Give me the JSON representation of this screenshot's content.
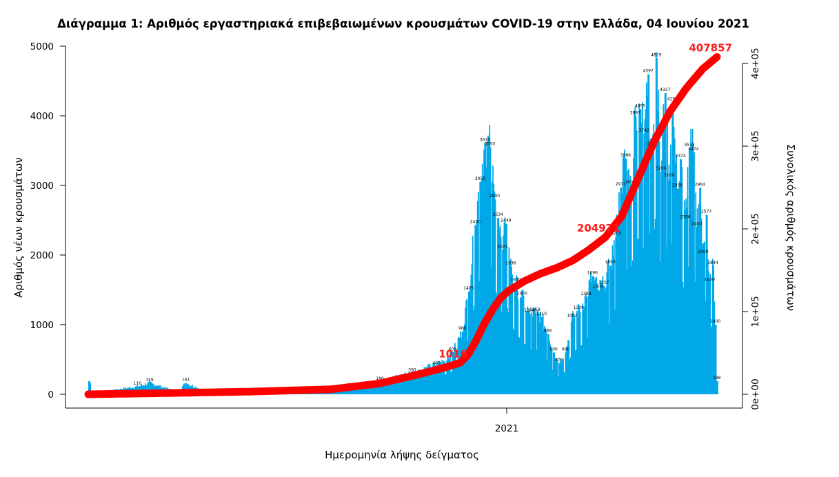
{
  "chart_data": {
    "type": "bar",
    "title": "Διάγραμμα 1: Αριθμός εργαστηριακά επιβεβαιωμένων κρουσμάτων COVID-19 στην Ελλάδα, 04 Ιουνίου 2021",
    "xlabel": "Ημερομηνία λήψης δείγματος",
    "ylabel": "Αριθμός νέων κρουσμάτων",
    "ylabel_right": "Συνολικός αριθμός κρουσμάτων",
    "ylim": [
      0,
      5000
    ],
    "ylim_right": [
      0,
      400000
    ],
    "yticks": [
      "0",
      "1000",
      "2000",
      "3000",
      "4000",
      "5000"
    ],
    "yticks_right": [
      "0e+00",
      "1e+05",
      "2e+05",
      "3e+05",
      "4e+05"
    ],
    "xticks": [
      "2021"
    ],
    "colors": {
      "bars": "#00a8e8",
      "cumulative": "#ff0000"
    },
    "series": [
      {
        "type": "bar",
        "key_points": [
          {
            "x": 3,
            "y": 15
          },
          {
            "x": 30,
            "y": 60
          },
          {
            "x": 60,
            "y": 110
          },
          {
            "x": 75,
            "y": 159
          },
          {
            "x": 110,
            "y": 40
          },
          {
            "x": 120,
            "y": 161
          },
          {
            "x": 150,
            "y": 20
          },
          {
            "x": 200,
            "y": 15
          },
          {
            "x": 250,
            "y": 15
          },
          {
            "x": 300,
            "y": 30
          },
          {
            "x": 330,
            "y": 90
          },
          {
            "x": 360,
            "y": 180
          },
          {
            "x": 400,
            "y": 300
          },
          {
            "x": 430,
            "y": 400
          },
          {
            "x": 450,
            "y": 600
          },
          {
            "x": 462,
            "y": 900
          },
          {
            "x": 470,
            "y": 1475
          },
          {
            "x": 478,
            "y": 2430
          },
          {
            "x": 484,
            "y": 3050
          },
          {
            "x": 490,
            "y": 3610
          },
          {
            "x": 496,
            "y": 3550
          },
          {
            "x": 502,
            "y": 2800
          },
          {
            "x": 506,
            "y": 2534
          },
          {
            "x": 512,
            "y": 2071
          },
          {
            "x": 516,
            "y": 2449
          },
          {
            "x": 522,
            "y": 1836
          },
          {
            "x": 528,
            "y": 1600
          },
          {
            "x": 536,
            "y": 1400
          },
          {
            "x": 545,
            "y": 1156
          },
          {
            "x": 552,
            "y": 1169
          },
          {
            "x": 560,
            "y": 1110
          },
          {
            "x": 568,
            "y": 866
          },
          {
            "x": 575,
            "y": 600
          },
          {
            "x": 582,
            "y": 450
          },
          {
            "x": 590,
            "y": 600
          },
          {
            "x": 598,
            "y": 1082
          },
          {
            "x": 606,
            "y": 1200
          },
          {
            "x": 615,
            "y": 1398
          },
          {
            "x": 623,
            "y": 1696
          },
          {
            "x": 630,
            "y": 1500
          },
          {
            "x": 637,
            "y": 1557
          },
          {
            "x": 645,
            "y": 1850
          },
          {
            "x": 652,
            "y": 2263
          },
          {
            "x": 658,
            "y": 2971
          },
          {
            "x": 664,
            "y": 3386
          },
          {
            "x": 670,
            "y": 3000
          },
          {
            "x": 676,
            "y": 3997
          },
          {
            "x": 682,
            "y": 4095
          },
          {
            "x": 687,
            "y": 3742
          },
          {
            "x": 692,
            "y": 4597
          },
          {
            "x": 697,
            "y": 3557
          },
          {
            "x": 702,
            "y": 4829
          },
          {
            "x": 708,
            "y": 3200
          },
          {
            "x": 713,
            "y": 4327
          },
          {
            "x": 718,
            "y": 3100
          },
          {
            "x": 722,
            "y": 4193
          },
          {
            "x": 728,
            "y": 2956
          },
          {
            "x": 732,
            "y": 3374
          },
          {
            "x": 738,
            "y": 2500
          },
          {
            "x": 743,
            "y": 3533
          },
          {
            "x": 748,
            "y": 3474
          },
          {
            "x": 752,
            "y": 2400
          },
          {
            "x": 756,
            "y": 2964
          },
          {
            "x": 760,
            "y": 2000
          },
          {
            "x": 764,
            "y": 2577
          },
          {
            "x": 768,
            "y": 1600
          },
          {
            "x": 772,
            "y": 1844
          },
          {
            "x": 775,
            "y": 1000
          },
          {
            "x": 777,
            "y": 188
          }
        ],
        "labeled_values": [
          3610,
          3550,
          3052,
          2970,
          2767,
          2534,
          2449,
          2430,
          2071,
          1836,
          1826,
          1474,
          1355,
          1135,
          1156,
          1169,
          1110,
          1082,
          1398,
          1696,
          1491,
          1557,
          1291,
          1152,
          2263,
          2971,
          3386,
          3997,
          4095,
          3742,
          4597,
          3557,
          4829,
          4327,
          4193,
          3374,
          3533,
          3474,
          2964,
          2577,
          1844,
          1955,
          1737,
          1644,
          1514,
          1362,
          1208,
          1103,
          939,
          819,
          805,
          751,
          1069,
          188,
          159,
          161
        ]
      },
      {
        "type": "line",
        "key_points": [
          {
            "x": 0,
            "y": 0
          },
          {
            "x": 100,
            "y": 1500
          },
          {
            "x": 200,
            "y": 3200
          },
          {
            "x": 300,
            "y": 6000
          },
          {
            "x": 360,
            "y": 13000
          },
          {
            "x": 400,
            "y": 22000
          },
          {
            "x": 440,
            "y": 32000
          },
          {
            "x": 460,
            "y": 38000
          },
          {
            "x": 470,
            "y": 48000
          },
          {
            "x": 480,
            "y": 65000
          },
          {
            "x": 490,
            "y": 85000
          },
          {
            "x": 500,
            "y": 102000
          },
          {
            "x": 510,
            "y": 116000
          },
          {
            "x": 520,
            "y": 125000
          },
          {
            "x": 540,
            "y": 137000
          },
          {
            "x": 560,
            "y": 146000
          },
          {
            "x": 580,
            "y": 153000
          },
          {
            "x": 600,
            "y": 162000
          },
          {
            "x": 620,
            "y": 175000
          },
          {
            "x": 640,
            "y": 190000
          },
          {
            "x": 660,
            "y": 215000
          },
          {
            "x": 680,
            "y": 260000
          },
          {
            "x": 700,
            "y": 305000
          },
          {
            "x": 720,
            "y": 342000
          },
          {
            "x": 740,
            "y": 370000
          },
          {
            "x": 760,
            "y": 393000
          },
          {
            "x": 778,
            "y": 407857
          }
        ],
        "annotations": [
          {
            "text": "1016",
            "x": 460
          },
          {
            "text": "204971",
            "x": 640
          },
          {
            "text": "407857",
            "x": 778
          }
        ]
      }
    ]
  }
}
